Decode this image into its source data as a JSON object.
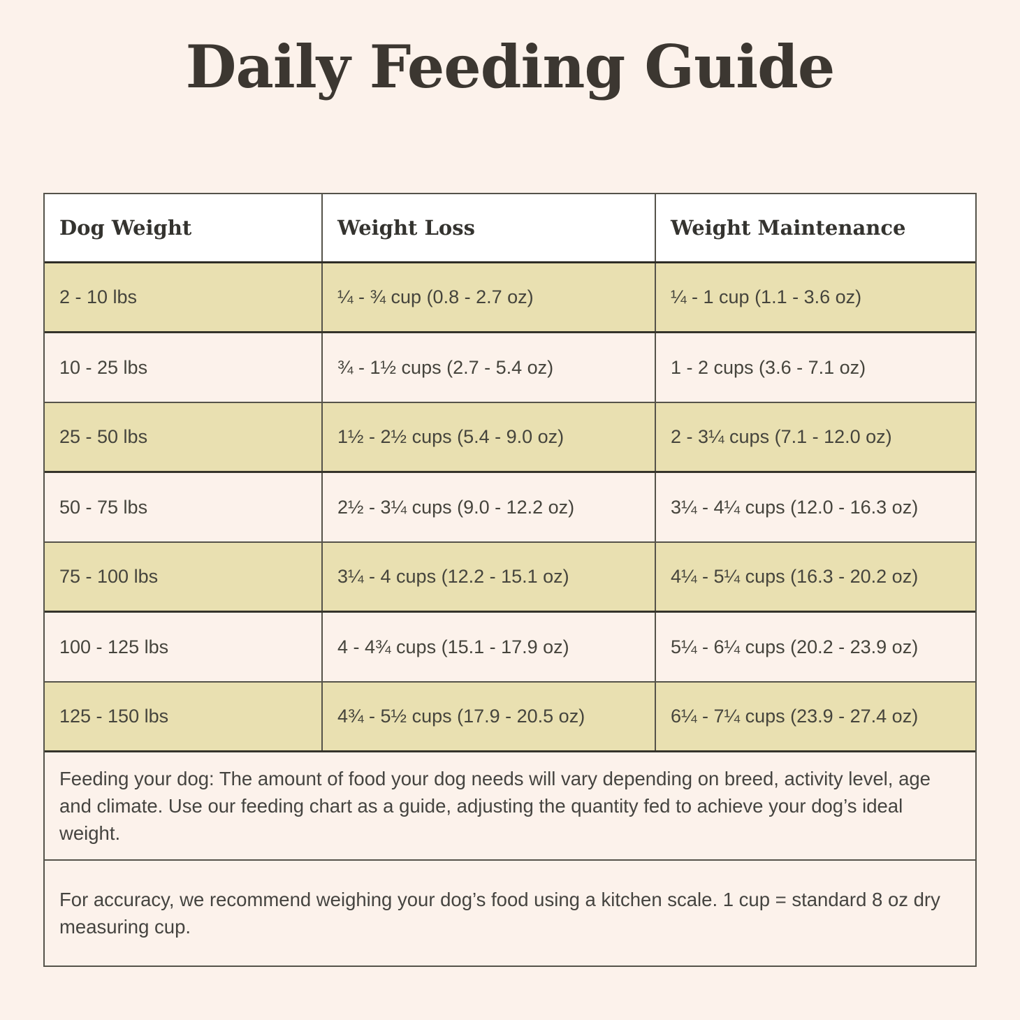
{
  "title": "Daily Feeding Guide",
  "colors": {
    "page_background": "#fcf2eb",
    "row_olive": "#e9e0b1",
    "row_cream": "#fcf2eb",
    "header_background": "#ffffff",
    "border": "#55534a",
    "border_dark": "#2e2d26",
    "title_text": "#3c3731",
    "body_text": "#45443c"
  },
  "table": {
    "columns": [
      "Dog Weight",
      "Weight Loss",
      "Weight Maintenance"
    ],
    "rows": [
      [
        "2 - 10 lbs",
        "¼ - ¾ cup (0.8 - 2.7 oz)",
        "¼ - 1 cup (1.1 - 3.6 oz)"
      ],
      [
        "10 - 25 lbs",
        "¾ - 1½ cups (2.7 - 5.4 oz)",
        "1 - 2 cups (3.6 - 7.1 oz)"
      ],
      [
        "25 - 50 lbs",
        "1½ - 2½ cups (5.4 - 9.0 oz)",
        "2 - 3¼ cups (7.1 - 12.0 oz)"
      ],
      [
        "50 - 75 lbs",
        "2½ - 3¼ cups (9.0 - 12.2 oz)",
        "3¼ - 4¼ cups (12.0 - 16.3 oz)"
      ],
      [
        "75 - 100 lbs",
        "3¼ - 4 cups (12.2 - 15.1 oz)",
        "4¼ - 5¼ cups (16.3 - 20.2 oz)"
      ],
      [
        "100 - 125 lbs",
        "4 - 4¾ cups (15.1 - 17.9 oz)",
        "5¼ - 6¼ cups (20.2 - 23.9 oz)"
      ],
      [
        "125 - 150 lbs",
        "4¾ - 5½ cups (17.9 - 20.5 oz)",
        "6¼ - 7¼ cups (23.9 - 27.4 oz)"
      ]
    ]
  },
  "notes": [
    "Feeding your dog: The amount of food your dog needs will vary depending on breed, activity level, age and climate. Use our feeding chart as a guide, adjusting the quantity fed to achieve your dog’s ideal weight.",
    "For accuracy, we recommend weighing your dog’s food using a kitchen scale. 1 cup = standard 8 oz dry measuring cup."
  ]
}
